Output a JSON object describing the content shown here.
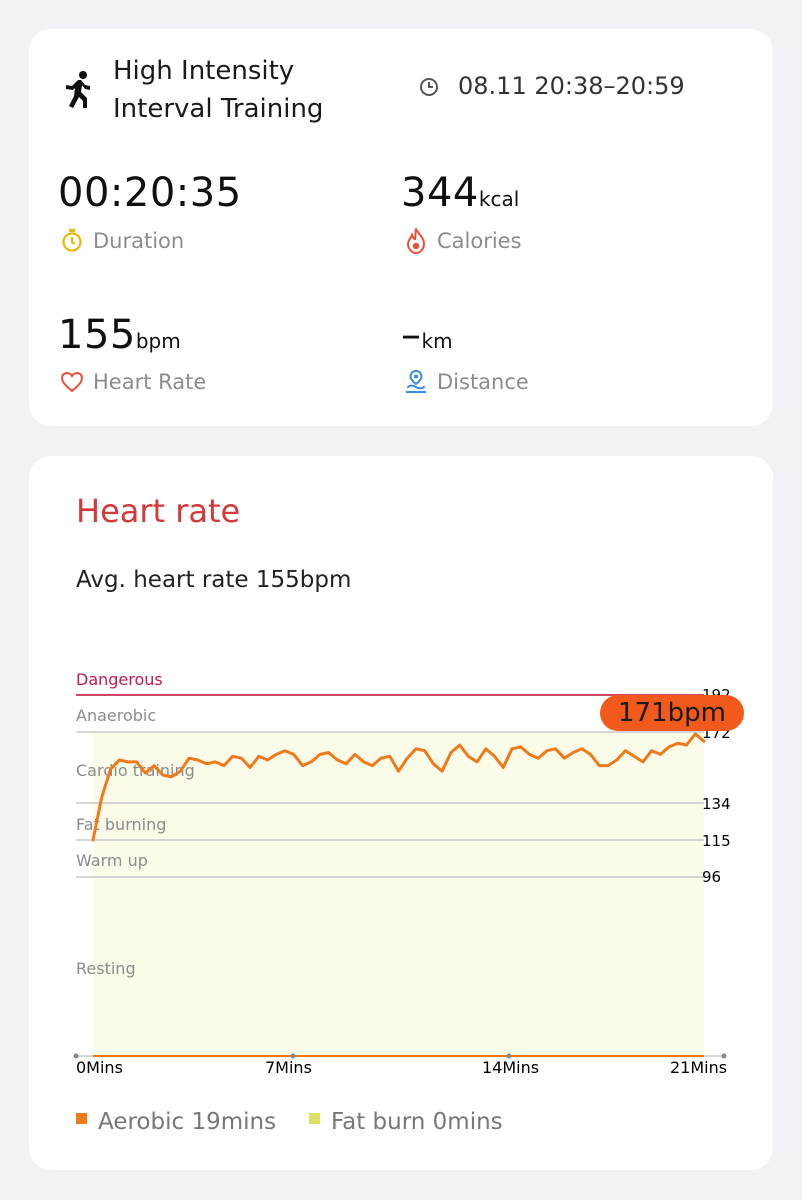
{
  "workout": {
    "title_line1": "High Intensity",
    "title_line2": "Interval Training",
    "time_range": "08.11 20:38–20:59",
    "duration": "00:20:35",
    "duration_label": "Duration",
    "calories": "344",
    "calories_unit": "kcal",
    "calories_label": "Calories",
    "heart_rate": "155",
    "heart_rate_unit": "bpm",
    "heart_rate_label": "Heart Rate",
    "distance": "–",
    "distance_unit": "km",
    "distance_label": "Distance"
  },
  "heart_rate_section": {
    "title": "Heart rate",
    "avg_text": "Avg. heart rate 155bpm",
    "max_badge": "171bpm",
    "zones": [
      "Dangerous",
      "Anaerobic",
      "Cardio training",
      "Fat burning",
      "Warm up",
      "Resting"
    ],
    "ticks": [
      "192",
      "172",
      "134",
      "115",
      "96"
    ],
    "x_labels": [
      "0Mins",
      "7Mins",
      "14Mins",
      "21Mins"
    ],
    "legend": [
      {
        "label": "Aerobic 19mins",
        "color": "#f07a1a"
      },
      {
        "label": "Fat burn 0mins",
        "color": "#dde063"
      }
    ]
  },
  "colors": {
    "accent_red": "#d3393a",
    "line_orange": "#f07a1a",
    "fill_cream": "#fbfbea",
    "dangerous": "#c2185b"
  },
  "chart_data": {
    "type": "line",
    "title": "",
    "xlabel": "",
    "ylabel": "",
    "x_unit": "Mins",
    "xlim": [
      0,
      21
    ],
    "y_ticks": [
      96,
      115,
      134,
      172,
      192
    ],
    "x": [
      0,
      0.3,
      0.6,
      0.9,
      1.2,
      1.5,
      1.8,
      2.1,
      2.4,
      2.7,
      3.0,
      3.3,
      3.6,
      3.9,
      4.2,
      4.5,
      4.8,
      5.1,
      5.4,
      5.7,
      6.0,
      6.3,
      6.6,
      6.9,
      7.2,
      7.5,
      7.8,
      8.1,
      8.4,
      8.7,
      9.0,
      9.3,
      9.6,
      9.9,
      10.2,
      10.5,
      10.8,
      11.1,
      11.4,
      11.7,
      12.0,
      12.3,
      12.6,
      12.9,
      13.2,
      13.5,
      13.8,
      14.1,
      14.4,
      14.7,
      15.0,
      15.3,
      15.6,
      15.9,
      16.2,
      16.5,
      16.8,
      17.1,
      17.4,
      17.7,
      18.0,
      18.3,
      18.6,
      18.9,
      19.2,
      19.5,
      19.8,
      20.1,
      20.4,
      20.7,
      21.0
    ],
    "series": [
      {
        "values": [
          115,
          137,
          152,
          157,
          156,
          156,
          150,
          154,
          149,
          148,
          151,
          158,
          157,
          155,
          156,
          154,
          159,
          158,
          153,
          159,
          157,
          160,
          162,
          160,
          154,
          156,
          160,
          161,
          157,
          155,
          160,
          156,
          154,
          158,
          159,
          151,
          158,
          163,
          162,
          155,
          151,
          161,
          165,
          159,
          156,
          163,
          159,
          153,
          163,
          164,
          160,
          158,
          162,
          163,
          158,
          161,
          163,
          160,
          154,
          154,
          157,
          162,
          159,
          156,
          162,
          160,
          164,
          166,
          165,
          171,
          167
        ]
      }
    ]
  }
}
